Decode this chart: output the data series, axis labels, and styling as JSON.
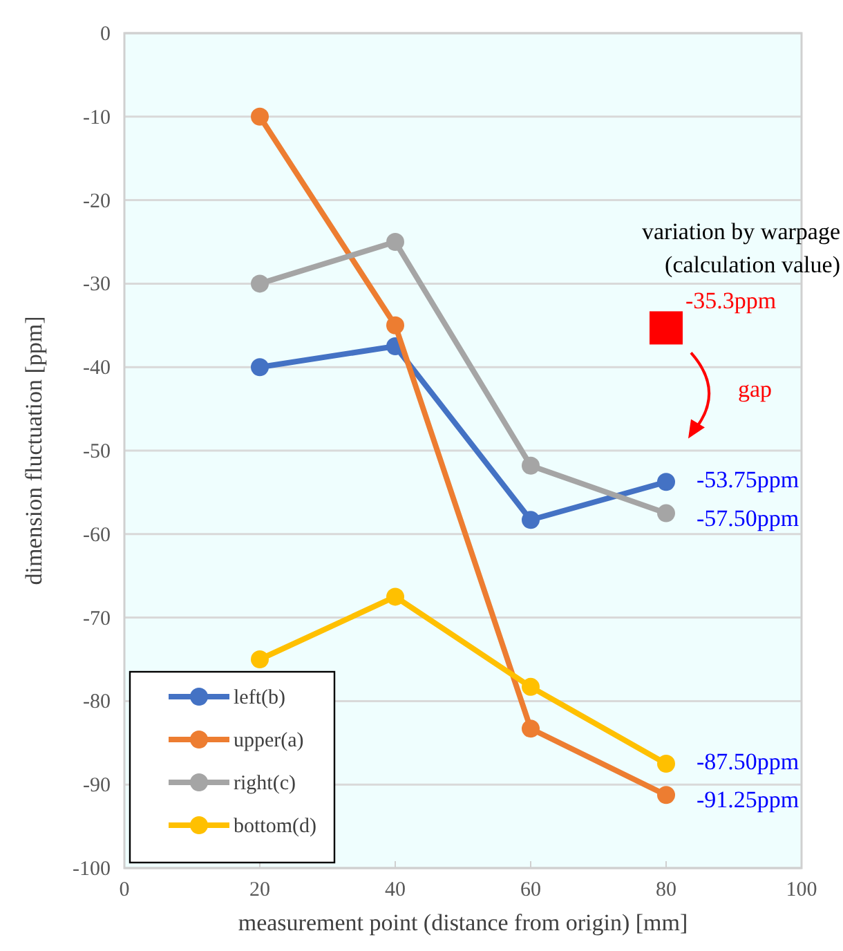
{
  "chart_data": {
    "type": "line",
    "xlabel": "measurement point (distance from origin) [mm]",
    "ylabel": "dimension fluctuation [ppm]",
    "xlim": [
      0,
      100
    ],
    "xticks": [
      0,
      20,
      40,
      60,
      80,
      100
    ],
    "ylim": [
      -100,
      0
    ],
    "yticks": [
      -100,
      -90,
      -80,
      -70,
      -60,
      -50,
      -40,
      -30,
      -20,
      -10,
      0
    ],
    "grid": "y",
    "legend": "bottom left",
    "marker": "circle",
    "series": [
      {
        "name": "left(b)",
        "color": "#4472c4",
        "x": [
          20,
          40,
          60,
          80
        ],
        "values": [
          -40,
          -37.5,
          -58.3,
          -53.75
        ],
        "value_labels": [
          null,
          null,
          null,
          "-53.75ppm"
        ]
      },
      {
        "name": "upper(a)",
        "color": "#ed7d31",
        "x": [
          20,
          40,
          60,
          80
        ],
        "values": [
          -10,
          -35,
          -83.3,
          -91.25
        ],
        "value_labels": [
          null,
          null,
          null,
          "-91.25ppm"
        ]
      },
      {
        "name": "right(c)",
        "color": "#a5a5a5",
        "x": [
          20,
          40,
          60,
          80
        ],
        "values": [
          -30,
          -25,
          -51.8,
          -57.5
        ],
        "value_labels": [
          null,
          null,
          null,
          "-57.50ppm"
        ]
      },
      {
        "name": "bottom(d)",
        "color": "#ffc000",
        "x": [
          20,
          40,
          60,
          80
        ],
        "values": [
          -75,
          -67.5,
          -78.3,
          -87.5
        ],
        "value_labels": [
          null,
          null,
          null,
          "-87.50ppm"
        ]
      },
      {
        "type": "scatter",
        "marker": "square",
        "color": "#ff0000",
        "x": [
          80
        ],
        "values": [
          -35.3
        ],
        "value_labels": [
          "-35.3ppm"
        ]
      }
    ],
    "annotations": [
      "variation by warpage\n(calculation value)",
      "gap"
    ]
  }
}
